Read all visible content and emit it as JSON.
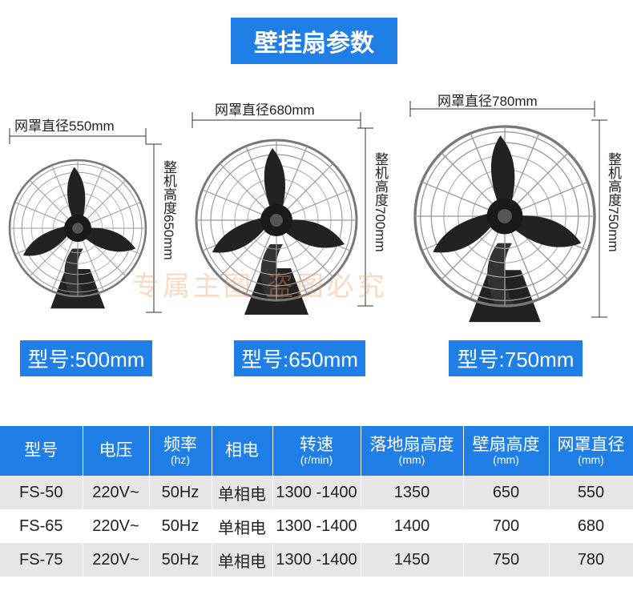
{
  "header": {
    "title": "壁挂扇参数"
  },
  "fans": [
    {
      "width_label": "网罩直径550mm",
      "height_label": "整机高度650mm",
      "model": "型号:500mm"
    },
    {
      "width_label": "网罩直径680mm",
      "height_label": "整机高度700mm",
      "model": "型号:650mm"
    },
    {
      "width_label": "网罩直径780mm",
      "height_label": "整机高度750mm",
      "model": "型号:750mm"
    }
  ],
  "watermark": "专属主图 盗图必究",
  "table": {
    "header": [
      {
        "label": "型号"
      },
      {
        "label": "电压"
      },
      {
        "label": "频率",
        "unit": "(hz)"
      },
      {
        "label": "相电"
      },
      {
        "label": "转速",
        "unit": "(r/min)"
      },
      {
        "label": "落地扇高度",
        "unit": "(mm)"
      },
      {
        "label": "壁扇高度",
        "unit": "(mm)"
      },
      {
        "label": "网罩直径",
        "unit": "(mm)"
      }
    ],
    "rows": [
      [
        "FS-50",
        "220V~",
        "50Hz",
        "单相电",
        "1300 -1400",
        "1350",
        "650",
        "550"
      ],
      [
        "FS-65",
        "220V~",
        "50Hz",
        "单相电",
        "1300 -1400",
        "1400",
        "700",
        "680"
      ],
      [
        "FS-75",
        "220V~",
        "50Hz",
        "单相电",
        "1300 -1400",
        "1450",
        "750",
        "780"
      ]
    ]
  }
}
